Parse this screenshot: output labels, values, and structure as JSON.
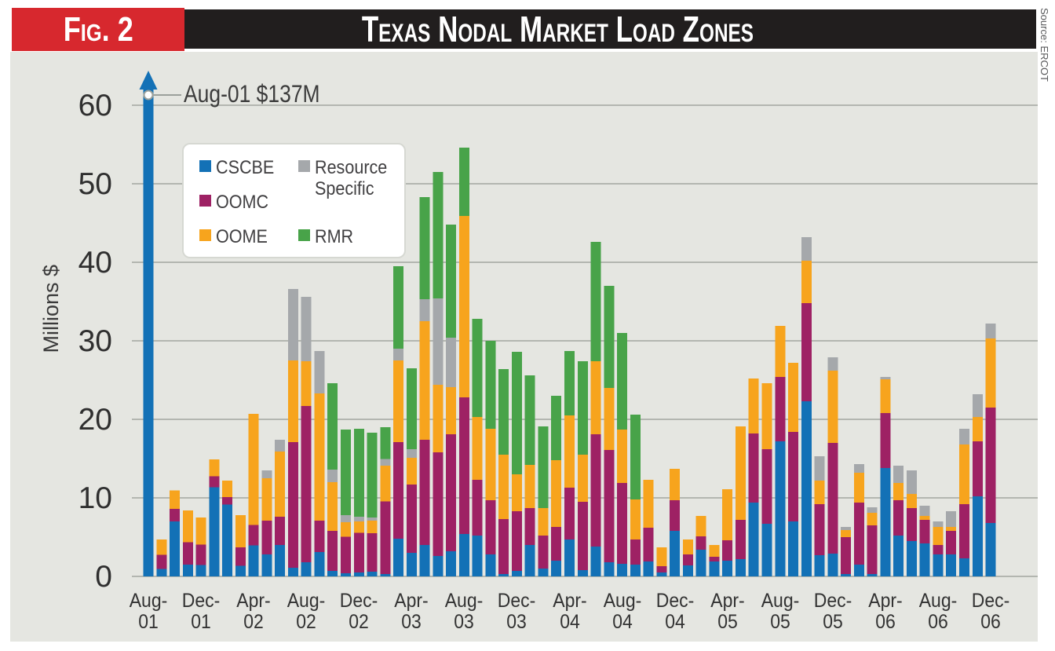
{
  "figure": {
    "fig_label": "Fig. 2",
    "source": "Source: ERCOT",
    "colors": {
      "band": "#211e1e",
      "fig_box": "#d7282e",
      "background": "#e5e6e1",
      "gridline": "#b3b6b0",
      "marker_line": "#9ba09b"
    }
  },
  "chart_data": {
    "type": "bar",
    "stacked": true,
    "title": "Texas Nodal Market Load Zones",
    "ylabel": "Millions $",
    "ylim": [
      0,
      60
    ],
    "yticks": [
      0,
      10,
      20,
      30,
      40,
      50,
      60
    ],
    "xtick_every": 4,
    "grid": true,
    "legend_position": "top-left",
    "annotation": {
      "text": "Aug-01 $137M",
      "month": "Aug-01",
      "value": 137
    },
    "categories": [
      "Aug-01",
      "Sep-01",
      "Oct-01",
      "Nov-01",
      "Dec-01",
      "Jan-02",
      "Feb-02",
      "Mar-02",
      "Apr-02",
      "May-02",
      "Jun-02",
      "Jul-02",
      "Aug-02",
      "Sep-02",
      "Oct-02",
      "Nov-02",
      "Dec-02",
      "Jan-03",
      "Feb-03",
      "Mar-03",
      "Apr-03",
      "May-03",
      "Jun-03",
      "Jul-03",
      "Aug-03",
      "Sep-03",
      "Oct-03",
      "Nov-03",
      "Dec-03",
      "Jan-04",
      "Feb-04",
      "Mar-04",
      "Apr-04",
      "May-04",
      "Jun-04",
      "Jul-04",
      "Aug-04",
      "Sep-04",
      "Oct-04",
      "Nov-04",
      "Dec-04",
      "Jan-05",
      "Feb-05",
      "Mar-05",
      "Apr-05",
      "May-05",
      "Jun-05",
      "Jul-05",
      "Aug-05",
      "Sep-05",
      "Oct-05",
      "Nov-05",
      "Dec-05",
      "Jan-06",
      "Feb-06",
      "Mar-06",
      "Apr-06",
      "May-06",
      "Jun-06",
      "Jul-06",
      "Aug-06",
      "Sep-06",
      "Oct-06",
      "Nov-06",
      "Dec-06"
    ],
    "series": [
      {
        "name": "CSCBE",
        "color": "#1371b6",
        "values": [
          137,
          0.95,
          7.0,
          1.5,
          1.45,
          11.35,
          9.15,
          1.35,
          3.95,
          2.8,
          4.0,
          1.1,
          1.8,
          3.1,
          0.7,
          0.4,
          0.5,
          0.6,
          0.3,
          4.8,
          3.0,
          4.0,
          2.6,
          3.2,
          5.4,
          5.2,
          2.8,
          0.3,
          0.7,
          4.0,
          1.0,
          2.0,
          4.7,
          0.8,
          3.8,
          1.8,
          1.6,
          1.5,
          1.9,
          0.5,
          5.8,
          1.4,
          3.4,
          1.9,
          2.0,
          2.2,
          9.4,
          6.7,
          17.2,
          7.0,
          22.3,
          2.7,
          2.9,
          0.3,
          1.5,
          0.3,
          13.8,
          5.2,
          4.5,
          4.2,
          2.8,
          2.8,
          2.3,
          10.2,
          6.8
        ]
      },
      {
        "name": "OOMC",
        "color": "#9e2164",
        "values": [
          0,
          1.8,
          1.6,
          2.85,
          2.6,
          1.4,
          0.95,
          2.35,
          2.6,
          4.3,
          3.6,
          16.0,
          19.9,
          4.0,
          5.1,
          4.65,
          5.05,
          4.9,
          9.25,
          12.3,
          8.7,
          13.4,
          13.2,
          14.9,
          17.4,
          7.1,
          6.9,
          7.0,
          7.6,
          4.7,
          4.2,
          4.3,
          6.6,
          8.7,
          14.3,
          14.3,
          10.3,
          3.2,
          4.3,
          0.8,
          3.9,
          1.4,
          1.7,
          0.6,
          2.6,
          5.0,
          8.8,
          9.5,
          8.2,
          11.4,
          12.5,
          6.5,
          14.1,
          4.7,
          7.9,
          6.2,
          7.0,
          4.5,
          4.2,
          3.0,
          1.2,
          3.0,
          6.9,
          7.0,
          14.7
        ]
      },
      {
        "name": "OOME",
        "color": "#f7a41d",
        "values": [
          0,
          1.95,
          2.35,
          4.05,
          3.45,
          2.15,
          2.1,
          4.1,
          14.15,
          5.4,
          8.3,
          10.4,
          5.7,
          16.2,
          6.2,
          1.85,
          1.45,
          1.6,
          4.55,
          10.4,
          3.4,
          15.1,
          8.6,
          6.0,
          23.1,
          8.0,
          9.1,
          8.2,
          4.7,
          5.5,
          3.5,
          8.5,
          9.2,
          6.0,
          9.3,
          7.9,
          6.8,
          5.1,
          6.1,
          2.4,
          4.0,
          1.9,
          2.6,
          1.5,
          6.5,
          11.9,
          7.0,
          8.4,
          6.5,
          8.8,
          5.4,
          3.0,
          9.2,
          0.9,
          3.8,
          1.6,
          4.3,
          2.2,
          1.8,
          0.5,
          2.3,
          0.5,
          7.6,
          3.1,
          8.8
        ]
      },
      {
        "name": "Resource Specific",
        "color": "#a5a8ab",
        "values": [
          0,
          0,
          0,
          0,
          0,
          0,
          0,
          0,
          0,
          1.0,
          1.5,
          9.1,
          8.2,
          5.4,
          1.6,
          0.9,
          0.6,
          0.4,
          0.85,
          1.5,
          1.1,
          2.8,
          11.0,
          6.3,
          0,
          0,
          0,
          0,
          0,
          0,
          0,
          0,
          0,
          0,
          0,
          0,
          0,
          0,
          0,
          0,
          0,
          0,
          0,
          0,
          0,
          0,
          0,
          0,
          0,
          0,
          3.0,
          3.1,
          1.7,
          0.4,
          1.1,
          0.7,
          0.3,
          2.2,
          3.0,
          1.3,
          0.7,
          2.0,
          2.0,
          2.9,
          1.9
        ]
      },
      {
        "name": "RMR",
        "color": "#48a349",
        "values": [
          0,
          0,
          0,
          0,
          0,
          0,
          0,
          0,
          0,
          0,
          0,
          0,
          0,
          0,
          11.0,
          10.9,
          11.2,
          10.8,
          4.05,
          10.5,
          10.3,
          13.0,
          16.1,
          14.4,
          8.7,
          12.5,
          11.2,
          10.9,
          15.6,
          11.4,
          10.4,
          8.2,
          8.2,
          11.9,
          15.2,
          13.0,
          12.3,
          10.8,
          0,
          0,
          0,
          0,
          0,
          0,
          0,
          0,
          0,
          0,
          0,
          0,
          0,
          0,
          0,
          0,
          0,
          0,
          0,
          0,
          0,
          0,
          0,
          0,
          0,
          0,
          0
        ]
      }
    ]
  }
}
